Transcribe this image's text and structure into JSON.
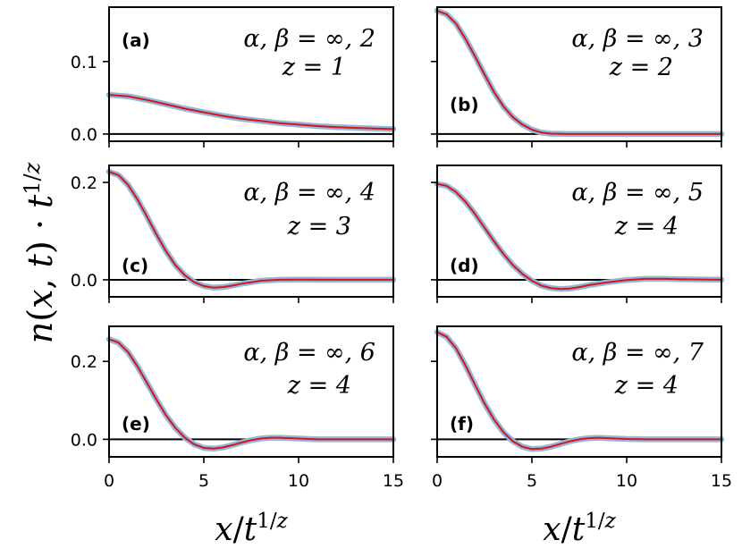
{
  "chart_data": {
    "type": "line",
    "ylabel": "n(x,t) · t^{1/z}",
    "xlabel": "x/t^{1/z}",
    "xlim": [
      0,
      15
    ],
    "xticks": [
      0,
      5,
      10,
      15
    ],
    "grid": false,
    "series_styles": {
      "thick": "#92b7da",
      "thin": "#d81414"
    },
    "panels": [
      {
        "label": "(a)",
        "params": "α, β = ∞, 2",
        "z_text": "z = 1",
        "ylim": [
          -0.01,
          0.175
        ],
        "yticks": [
          0.0,
          0.1
        ],
        "ytick_labels": [
          "0.0",
          "0.1"
        ],
        "x": [
          0,
          1,
          2,
          3,
          4,
          5,
          6,
          7,
          8,
          9,
          10,
          11,
          12,
          13,
          14,
          15
        ],
        "y": [
          0.054,
          0.052,
          0.047,
          0.041,
          0.035,
          0.03,
          0.025,
          0.021,
          0.018,
          0.015,
          0.013,
          0.011,
          0.0095,
          0.0085,
          0.0075,
          0.0068
        ]
      },
      {
        "label": "(b)",
        "params": "α, β = ∞, 3",
        "z_text": "z = 2",
        "ylim": [
          -0.01,
          0.175
        ],
        "yticks": [
          0.0,
          0.1
        ],
        "ytick_labels": [
          "",
          ""
        ],
        "x": [
          0,
          0.5,
          1,
          1.5,
          2,
          2.5,
          3,
          3.5,
          4,
          4.5,
          5,
          5.5,
          6,
          7,
          8,
          9,
          10,
          12,
          15
        ],
        "y": [
          0.17,
          0.165,
          0.152,
          0.131,
          0.107,
          0.082,
          0.058,
          0.038,
          0.023,
          0.013,
          0.006,
          0.002,
          0.0005,
          0.0,
          0.0,
          0.0,
          0.0,
          0.0,
          0.0
        ]
      },
      {
        "label": "(c)",
        "params": "α, β = ∞, 4",
        "z_text": "z = 3",
        "ylim": [
          -0.035,
          0.235
        ],
        "yticks": [
          0.0,
          0.2
        ],
        "ytick_labels": [
          "0.0",
          "0.2"
        ],
        "x": [
          0,
          0.5,
          1,
          1.5,
          2,
          2.5,
          3,
          3.5,
          4,
          4.5,
          5,
          5.5,
          6,
          6.5,
          7,
          7.5,
          8,
          9,
          10,
          12,
          15
        ],
        "y": [
          0.222,
          0.215,
          0.195,
          0.165,
          0.13,
          0.093,
          0.059,
          0.03,
          0.009,
          -0.005,
          -0.013,
          -0.016,
          -0.015,
          -0.012,
          -0.008,
          -0.005,
          -0.002,
          0.0,
          0.0005,
          0.0,
          0.0
        ]
      },
      {
        "label": "(d)",
        "params": "α, β = ∞, 5",
        "z_text": "z = 4",
        "ylim": [
          -0.035,
          0.235
        ],
        "yticks": [
          0.0,
          0.2
        ],
        "ytick_labels": [
          "",
          ""
        ],
        "x": [
          0,
          0.5,
          1,
          1.5,
          2,
          2.5,
          3,
          3.5,
          4,
          4.5,
          5,
          5.5,
          6,
          6.5,
          7,
          7.5,
          8,
          9,
          10,
          11,
          12,
          13,
          15
        ],
        "y": [
          0.197,
          0.193,
          0.18,
          0.16,
          0.135,
          0.107,
          0.079,
          0.053,
          0.03,
          0.012,
          -0.002,
          -0.012,
          -0.017,
          -0.019,
          -0.018,
          -0.015,
          -0.011,
          -0.005,
          -0.0005,
          0.002,
          0.002,
          0.001,
          0.0
        ]
      },
      {
        "label": "(e)",
        "params": "α, β = ∞, 6",
        "z_text": "z = 4",
        "ylim": [
          -0.045,
          0.29
        ],
        "yticks": [
          0.0,
          0.2
        ],
        "ytick_labels": [
          "0.0",
          "0.2"
        ],
        "x": [
          0,
          0.5,
          1,
          1.5,
          2,
          2.5,
          3,
          3.5,
          4,
          4.5,
          5,
          5.5,
          6,
          6.5,
          7,
          7.5,
          8,
          8.5,
          9,
          10,
          11,
          12,
          15
        ],
        "y": [
          0.257,
          0.248,
          0.224,
          0.187,
          0.145,
          0.102,
          0.062,
          0.029,
          0.004,
          -0.013,
          -0.022,
          -0.024,
          -0.021,
          -0.015,
          -0.008,
          -0.002,
          0.002,
          0.004,
          0.004,
          0.002,
          0.0,
          0.0,
          0.0
        ]
      },
      {
        "label": "(f)",
        "params": "α, β = ∞, 7",
        "z_text": "z = 4",
        "ylim": [
          -0.045,
          0.29
        ],
        "yticks": [
          0.0,
          0.2
        ],
        "ytick_labels": [
          "",
          ""
        ],
        "x": [
          0,
          0.5,
          1,
          1.5,
          2,
          2.5,
          3,
          3.5,
          4,
          4.5,
          5,
          5.5,
          6,
          6.5,
          7,
          7.5,
          8,
          8.5,
          9,
          10,
          11,
          12,
          15
        ],
        "y": [
          0.275,
          0.263,
          0.233,
          0.189,
          0.14,
          0.092,
          0.051,
          0.018,
          -0.005,
          -0.019,
          -0.025,
          -0.024,
          -0.019,
          -0.012,
          -0.005,
          0.0,
          0.003,
          0.004,
          0.003,
          0.001,
          0.0,
          0.0,
          0.0
        ]
      }
    ]
  }
}
